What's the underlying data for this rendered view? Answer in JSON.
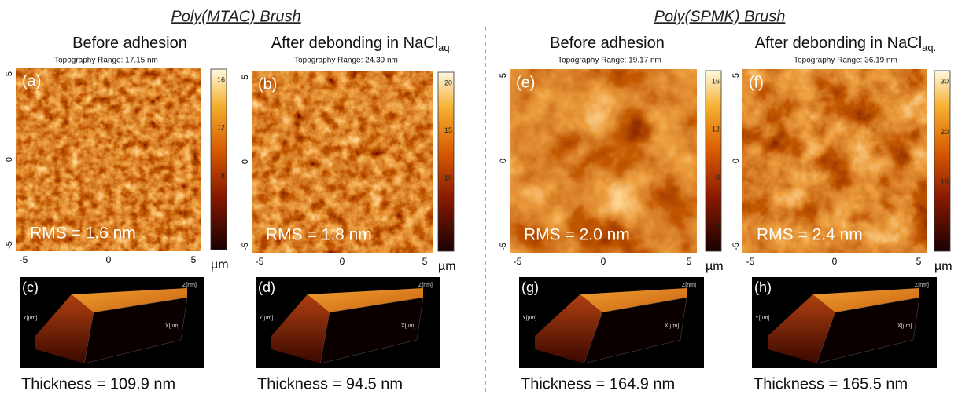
{
  "groups": [
    {
      "title": "Poly(MTAC) Brush",
      "panels": [
        {
          "heading": "Before adhesion",
          "topography": "Topography Range:  17.15 nm",
          "label": "(a)",
          "rms": "RMS = 1.6 nm",
          "colorbar_ticks": [
            "16",
            "12",
            "8",
            "4"
          ],
          "label_3d": "(c)",
          "thickness": "Thickness = 109.9 nm"
        },
        {
          "heading": "After debonding in NaCl",
          "heading_sub": "aq.",
          "topography": "Topography Range:  24.39 nm",
          "label": "(b)",
          "rms": "RMS = 1.8 nm",
          "colorbar_ticks": [
            "20",
            "15",
            "10",
            "5"
          ],
          "label_3d": "(d)",
          "thickness": "Thickness = 94.5 nm"
        }
      ]
    },
    {
      "title": "Poly(SPMK) Brush",
      "panels": [
        {
          "heading": "Before adhesion",
          "topography": "Topography Range:  19.17 nm",
          "label": "(e)",
          "rms": "RMS = 2.0 nm",
          "colorbar_ticks": [
            "16",
            "12",
            "8",
            "4"
          ],
          "label_3d": "(g)",
          "thickness": "Thickness = 164.9 nm"
        },
        {
          "heading": "After debonding in NaCl",
          "heading_sub": "aq.",
          "topography": "Topography Range:  36.19 nm",
          "label": "(f)",
          "rms": "RMS = 2.4 nm",
          "colorbar_ticks": [
            "30",
            "20",
            "10"
          ],
          "label_3d": "(h)",
          "thickness": "Thickness = 165.5 nm"
        }
      ]
    }
  ],
  "axis_ticks": {
    "y": [
      "5",
      "0",
      "-5"
    ],
    "x": [
      "-5",
      "0",
      "5"
    ],
    "unit": "µm"
  },
  "axis_3d": {
    "z": "Z[nm]",
    "y": "Y[µm]",
    "x": "X[µm]"
  }
}
